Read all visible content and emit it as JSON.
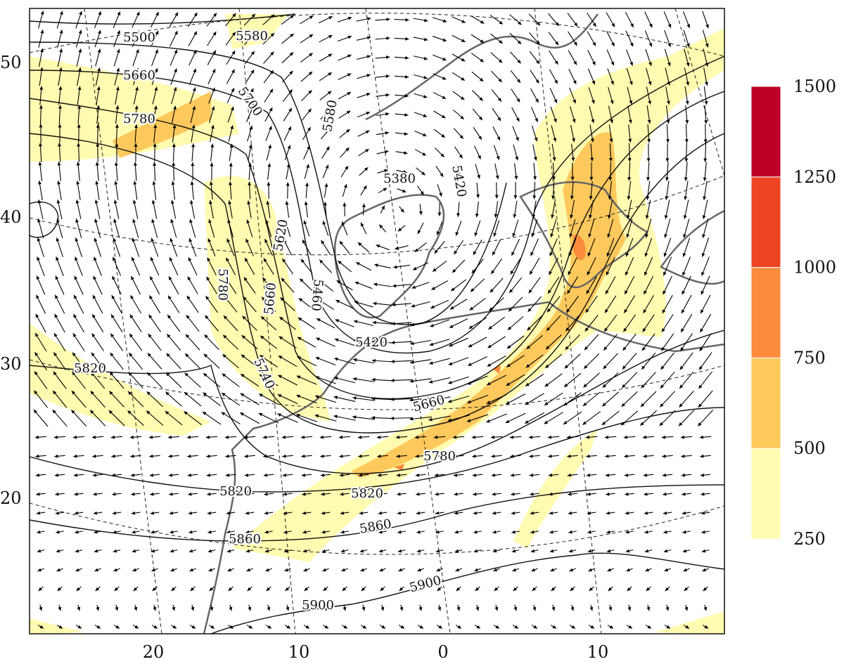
{
  "map": {
    "lat_labels": [
      "50",
      "40",
      "30",
      "20"
    ],
    "lon_labels": [
      "20",
      "10",
      "0",
      "10"
    ],
    "contour_labels": [
      5500,
      5580,
      5660,
      5700,
      5780,
      5580,
      5380,
      5420,
      5620,
      5780,
      5660,
      5460,
      5820,
      5740,
      5420,
      5660,
      5780,
      5820,
      5820,
      5860,
      5860,
      5900,
      5900
    ]
  },
  "colorbar": {
    "ticks": [
      250,
      500,
      750,
      1000,
      1250,
      1500
    ],
    "colors": [
      "#fffbb0",
      "#fec95c",
      "#fb8c3c",
      "#ee4424",
      "#bd0026"
    ]
  }
}
